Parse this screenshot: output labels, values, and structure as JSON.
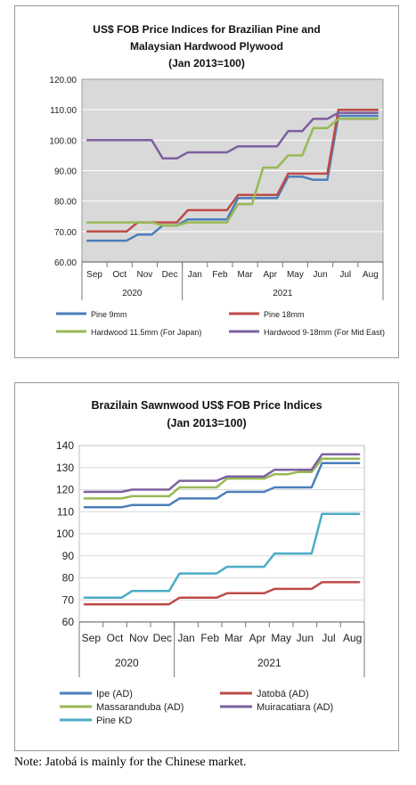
{
  "note": "Note: Jatobá is mainly for the Chinese market.",
  "chart_data": [
    {
      "type": "line",
      "title": "US$ FOB Price Indices for Brazilian Pine and",
      "title_line2": "Malaysian Hardwood Plywood",
      "subtitle": "(Jan 2013=100)",
      "categories": [
        "Sep",
        "Oct",
        "Nov",
        "Dec",
        "Jan",
        "Feb",
        "Mar",
        "Apr",
        "May",
        "Jun",
        "Jul",
        "Aug"
      ],
      "year_groups": [
        {
          "label": "2020",
          "span": 4
        },
        {
          "label": "2021",
          "span": 8
        }
      ],
      "ylim": [
        60,
        120
      ],
      "yticks": [
        "60.00",
        "70.00",
        "80.00",
        "90.00",
        "100.00",
        "110.00",
        "120.00"
      ],
      "grid": true,
      "plot_background": "#d9d9d9",
      "legend_position": "bottom",
      "series": [
        {
          "name": "Pine 9mm",
          "color": "#4a7ebb",
          "values": [
            67,
            67,
            69,
            72,
            74,
            74,
            81,
            81,
            88,
            87,
            108,
            108
          ]
        },
        {
          "name": "Pine 18mm",
          "color": "#be4b48",
          "values": [
            70,
            70,
            73,
            73,
            77,
            77,
            82,
            82,
            89,
            89,
            110,
            110
          ]
        },
        {
          "name": "Hardwood 11.5mm (For Japan)",
          "color": "#98b954",
          "values": [
            73,
            73,
            73,
            72,
            73,
            73,
            79,
            91,
            95,
            104,
            107,
            107
          ]
        },
        {
          "name": "Hardwood 9-18mm (For Mid East)",
          "color": "#7d60a0",
          "values": [
            100,
            100,
            100,
            94,
            96,
            96,
            98,
            98,
            103,
            107,
            109,
            109
          ]
        }
      ]
    },
    {
      "type": "line",
      "title": "Brazilain Sawnwood US$ FOB Price Indices",
      "subtitle": "(Jan 2013=100)",
      "categories": [
        "Sep",
        "Oct",
        "Nov",
        "Dec",
        "Jan",
        "Feb",
        "Mar",
        "Apr",
        "May",
        "Jun",
        "Jul",
        "Aug"
      ],
      "year_groups": [
        {
          "label": "2020",
          "span": 4
        },
        {
          "label": "2021",
          "span": 8
        }
      ],
      "ylim": [
        60,
        140
      ],
      "yticks": [
        "60",
        "70",
        "80",
        "90",
        "100",
        "110",
        "120",
        "130",
        "140"
      ],
      "grid": true,
      "plot_background": "#ffffff",
      "legend_position": "bottom",
      "series": [
        {
          "name": "Ipe (AD)",
          "color": "#4a7ebb",
          "values": [
            112,
            112,
            113,
            113,
            116,
            116,
            119,
            119,
            121,
            121,
            132,
            132
          ]
        },
        {
          "name": "Jatobá (AD)",
          "color": "#be4b48",
          "values": [
            68,
            68,
            68,
            68,
            71,
            71,
            73,
            73,
            75,
            75,
            78,
            78
          ]
        },
        {
          "name": "Massaranduba (AD)",
          "color": "#98b954",
          "values": [
            116,
            116,
            117,
            117,
            121,
            121,
            125,
            125,
            127,
            128,
            134,
            134
          ]
        },
        {
          "name": "Muiracatiara (AD)",
          "color": "#7d60a0",
          "values": [
            119,
            119,
            120,
            120,
            124,
            124,
            126,
            126,
            129,
            129,
            136,
            136
          ]
        },
        {
          "name": "Pine KD",
          "color": "#4bacc6",
          "values": [
            71,
            71,
            74,
            74,
            82,
            82,
            85,
            85,
            91,
            91,
            109,
            109
          ]
        }
      ]
    }
  ]
}
